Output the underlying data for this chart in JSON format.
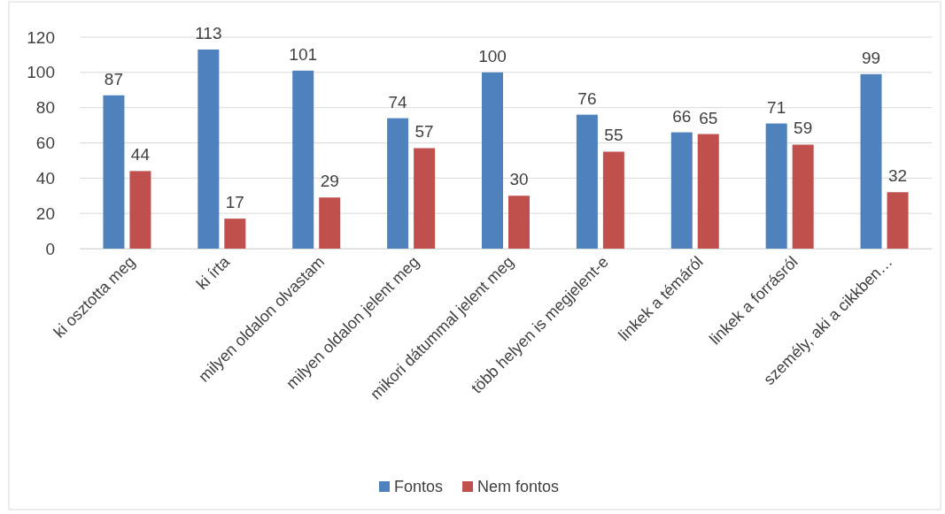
{
  "chart_data": {
    "type": "bar",
    "categories": [
      "ki osztotta meg",
      "ki írta",
      "milyen oldalon olvastam",
      "milyen oldalon jelent meg",
      "mikori dátummal jelent meg",
      "több helyen is megjelent-e",
      "linkek a  témáról",
      "linkek a forrásról",
      "személy, aki a cikkben…"
    ],
    "series": [
      {
        "name": "Fontos",
        "color": "#4f81bd",
        "values": [
          87,
          113,
          101,
          74,
          100,
          76,
          66,
          71,
          99
        ]
      },
      {
        "name": "Nem fontos",
        "color": "#c0504d",
        "values": [
          44,
          17,
          29,
          57,
          30,
          55,
          65,
          59,
          32
        ]
      }
    ],
    "ylim": [
      0,
      120
    ],
    "yticks": [
      0,
      20,
      40,
      60,
      80,
      100,
      120
    ],
    "grid": "y",
    "legend": "bottom",
    "data_labels": true
  }
}
